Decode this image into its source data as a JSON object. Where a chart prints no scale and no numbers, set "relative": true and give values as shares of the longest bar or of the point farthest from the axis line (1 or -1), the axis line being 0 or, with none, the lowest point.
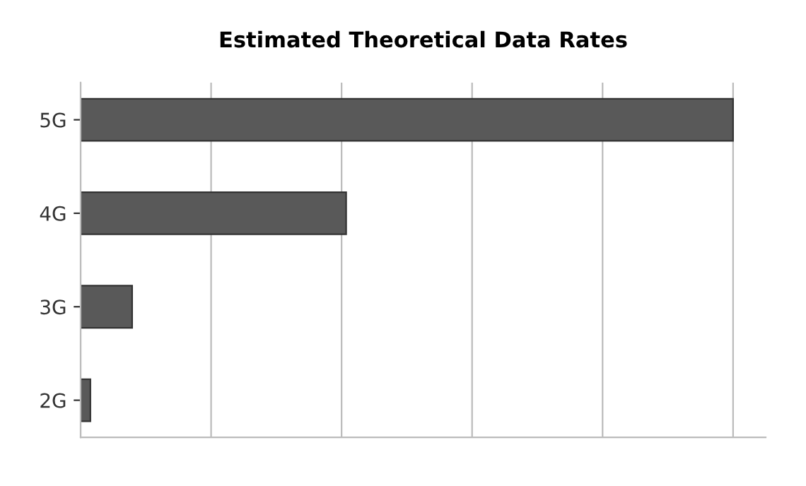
{
  "chart_data": {
    "type": "bar",
    "orientation": "horizontal",
    "relative": true,
    "title": "Estimated Theoretical Data Rates",
    "categories": [
      "5G",
      "4G",
      "3G",
      "2G"
    ],
    "values": [
      1,
      0.407,
      0.079,
      0.015
    ],
    "color": "#595959",
    "grid": "x"
  }
}
